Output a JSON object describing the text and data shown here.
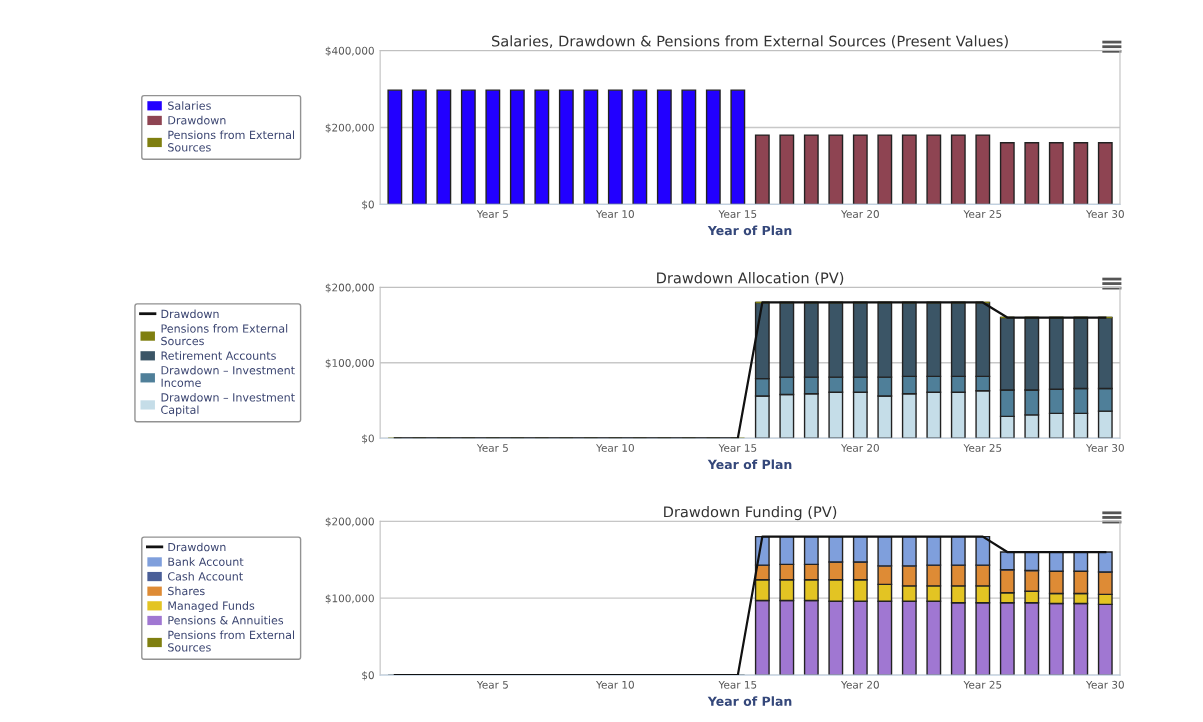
{
  "chart_data": [
    {
      "type": "bar",
      "stacked": true,
      "title": "Salaries, Drawdown & Pensions from External Sources (Present Values)",
      "xlabel": "Year of Plan",
      "categories": [
        null,
        null,
        null,
        null,
        "Year 5",
        null,
        null,
        null,
        null,
        "Year 10",
        null,
        null,
        null,
        null,
        "Year 15",
        null,
        null,
        null,
        null,
        "Year 20",
        null,
        null,
        null,
        null,
        "Year 25",
        null,
        null,
        null,
        null,
        "Year 30"
      ],
      "ylim": [
        0,
        400000
      ],
      "yticks": [
        {
          "value": 0,
          "label": "$0"
        },
        {
          "value": 200000,
          "label": "$200,000"
        },
        {
          "value": 400000,
          "label": "$400,000"
        }
      ],
      "grid": "y",
      "legend": "left",
      "series": [
        {
          "name": "Pensions from External Sources",
          "color": "#7f7f10",
          "values": [
            0,
            0,
            0,
            0,
            0,
            0,
            0,
            0,
            0,
            0,
            0,
            0,
            0,
            0,
            0,
            0,
            0,
            0,
            0,
            0,
            0,
            0,
            0,
            0,
            0,
            0,
            0,
            0,
            0,
            0
          ]
        },
        {
          "name": "Drawdown",
          "color": "#8e4452",
          "values": [
            null,
            null,
            null,
            null,
            null,
            null,
            null,
            null,
            null,
            null,
            null,
            null,
            null,
            null,
            null,
            180000,
            180000,
            180000,
            180000,
            180000,
            180000,
            180000,
            180000,
            180000,
            180000,
            160000,
            160000,
            160000,
            160000,
            160000
          ]
        },
        {
          "name": "Salaries",
          "color": "#2200ff",
          "values": [
            297000,
            297000,
            297000,
            297000,
            297000,
            297000,
            297000,
            297000,
            297000,
            297000,
            297000,
            297000,
            297000,
            297000,
            297000,
            null,
            null,
            null,
            null,
            null,
            null,
            null,
            null,
            null,
            null,
            null,
            null,
            null,
            null,
            null
          ]
        }
      ]
    },
    {
      "type": "bar",
      "stacked": true,
      "title": "Drawdown Allocation (PV)",
      "xlabel": "Year of Plan",
      "categories": [
        null,
        null,
        null,
        null,
        "Year 5",
        null,
        null,
        null,
        null,
        "Year 10",
        null,
        null,
        null,
        null,
        "Year 15",
        null,
        null,
        null,
        null,
        "Year 20",
        null,
        null,
        null,
        null,
        "Year 25",
        null,
        null,
        null,
        null,
        "Year 30"
      ],
      "ylim": [
        0,
        200000
      ],
      "yticks": [
        {
          "value": 0,
          "label": "$0"
        },
        {
          "value": 100000,
          "label": "$100,000"
        },
        {
          "value": 200000,
          "label": "$200,000"
        }
      ],
      "grid": "y",
      "legend": "left",
      "series": [
        {
          "name": "Drawdown – Investment Capital",
          "color": "#c5dde8",
          "values": [
            null,
            null,
            null,
            null,
            null,
            null,
            null,
            null,
            null,
            null,
            null,
            null,
            null,
            null,
            null,
            56000,
            58000,
            59000,
            61000,
            61000,
            56000,
            59000,
            61000,
            61000,
            63000,
            29000,
            31000,
            33000,
            33000,
            36000
          ]
        },
        {
          "name": "Drawdown – Investment Income",
          "color": "#4f7f99",
          "values": [
            null,
            null,
            null,
            null,
            null,
            null,
            null,
            null,
            null,
            null,
            null,
            null,
            null,
            null,
            null,
            23000,
            23000,
            22000,
            20000,
            20000,
            25000,
            23000,
            21000,
            21000,
            19000,
            35000,
            33000,
            32000,
            33000,
            30000
          ]
        },
        {
          "name": "Retirement Accounts",
          "color": "#3b5566",
          "values": [
            null,
            null,
            null,
            null,
            null,
            null,
            null,
            null,
            null,
            null,
            null,
            null,
            null,
            null,
            null,
            101000,
            99000,
            99000,
            99000,
            99000,
            99000,
            98000,
            98000,
            98000,
            98000,
            96000,
            96000,
            95000,
            94000,
            94000
          ]
        },
        {
          "name": "Pensions from External Sources",
          "color": "#7f7f10",
          "values": [
            0,
            0,
            0,
            0,
            0,
            0,
            0,
            0,
            0,
            0,
            0,
            0,
            0,
            0,
            0,
            0,
            0,
            0,
            0,
            0,
            0,
            0,
            0,
            0,
            0,
            0,
            0,
            0,
            0,
            0
          ]
        },
        {
          "name": "Drawdown",
          "type": "line",
          "color": "#111111",
          "values": [
            0,
            0,
            0,
            0,
            0,
            0,
            0,
            0,
            0,
            0,
            0,
            0,
            0,
            0,
            0,
            180000,
            180000,
            180000,
            180000,
            180000,
            180000,
            180000,
            180000,
            180000,
            180000,
            160000,
            160000,
            160000,
            160000,
            160000
          ]
        }
      ]
    },
    {
      "type": "bar",
      "stacked": true,
      "title": "Drawdown Funding (PV)",
      "xlabel": "Year of Plan",
      "categories": [
        null,
        null,
        null,
        null,
        "Year 5",
        null,
        null,
        null,
        null,
        "Year 10",
        null,
        null,
        null,
        null,
        "Year 15",
        null,
        null,
        null,
        null,
        "Year 20",
        null,
        null,
        null,
        null,
        "Year 25",
        null,
        null,
        null,
        null,
        "Year 30"
      ],
      "ylim": [
        0,
        200000
      ],
      "yticks": [
        {
          "value": 0,
          "label": "$0"
        },
        {
          "value": 100000,
          "label": "$100,000"
        },
        {
          "value": 200000,
          "label": "$200,000"
        }
      ],
      "grid": "y",
      "legend": "left",
      "series": [
        {
          "name": "Pensions from External Sources",
          "color": "#7f7f10",
          "values": [
            0,
            0,
            0,
            0,
            0,
            0,
            0,
            0,
            0,
            0,
            0,
            0,
            0,
            0,
            0,
            0,
            0,
            0,
            0,
            0,
            0,
            0,
            0,
            0,
            0,
            0,
            0,
            0,
            0,
            0
          ]
        },
        {
          "name": "Pensions & Annuities",
          "color": "#a077d2",
          "values": [
            null,
            null,
            null,
            null,
            null,
            null,
            null,
            null,
            null,
            null,
            null,
            null,
            null,
            null,
            null,
            97000,
            97000,
            97000,
            96000,
            96000,
            96000,
            96000,
            96000,
            94000,
            94000,
            94000,
            94000,
            93000,
            93000,
            92000
          ]
        },
        {
          "name": "Managed Funds",
          "color": "#e3c423",
          "values": [
            null,
            null,
            null,
            null,
            null,
            null,
            null,
            null,
            null,
            null,
            null,
            null,
            null,
            null,
            null,
            27000,
            27000,
            27000,
            28000,
            28000,
            22000,
            20000,
            20000,
            22000,
            22000,
            13000,
            15000,
            13000,
            13000,
            13000
          ]
        },
        {
          "name": "Shares",
          "color": "#de8b35",
          "values": [
            null,
            null,
            null,
            null,
            null,
            null,
            null,
            null,
            null,
            null,
            null,
            null,
            null,
            null,
            null,
            19000,
            20000,
            20000,
            23000,
            23000,
            24000,
            26000,
            27000,
            27000,
            27000,
            30000,
            27000,
            29000,
            29000,
            29000
          ]
        },
        {
          "name": "Cash Account",
          "color": "#4a5f98",
          "values": [
            0,
            0,
            0,
            0,
            0,
            0,
            0,
            0,
            0,
            0,
            0,
            0,
            0,
            0,
            0,
            0,
            0,
            0,
            0,
            0,
            0,
            0,
            0,
            0,
            0,
            0,
            0,
            0,
            0,
            0
          ]
        },
        {
          "name": "Bank Account",
          "color": "#7f9fdc",
          "values": [
            null,
            null,
            null,
            null,
            null,
            null,
            null,
            null,
            null,
            null,
            null,
            null,
            null,
            null,
            null,
            37000,
            36000,
            36000,
            33000,
            33000,
            38000,
            38000,
            37000,
            37000,
            37000,
            23000,
            24000,
            25000,
            25000,
            26000
          ]
        },
        {
          "name": "Drawdown",
          "type": "line",
          "color": "#111111",
          "values": [
            0,
            0,
            0,
            0,
            0,
            0,
            0,
            0,
            0,
            0,
            0,
            0,
            0,
            0,
            0,
            180000,
            180000,
            180000,
            180000,
            180000,
            180000,
            180000,
            180000,
            180000,
            180000,
            160000,
            160000,
            160000,
            160000,
            160000
          ]
        }
      ]
    }
  ]
}
